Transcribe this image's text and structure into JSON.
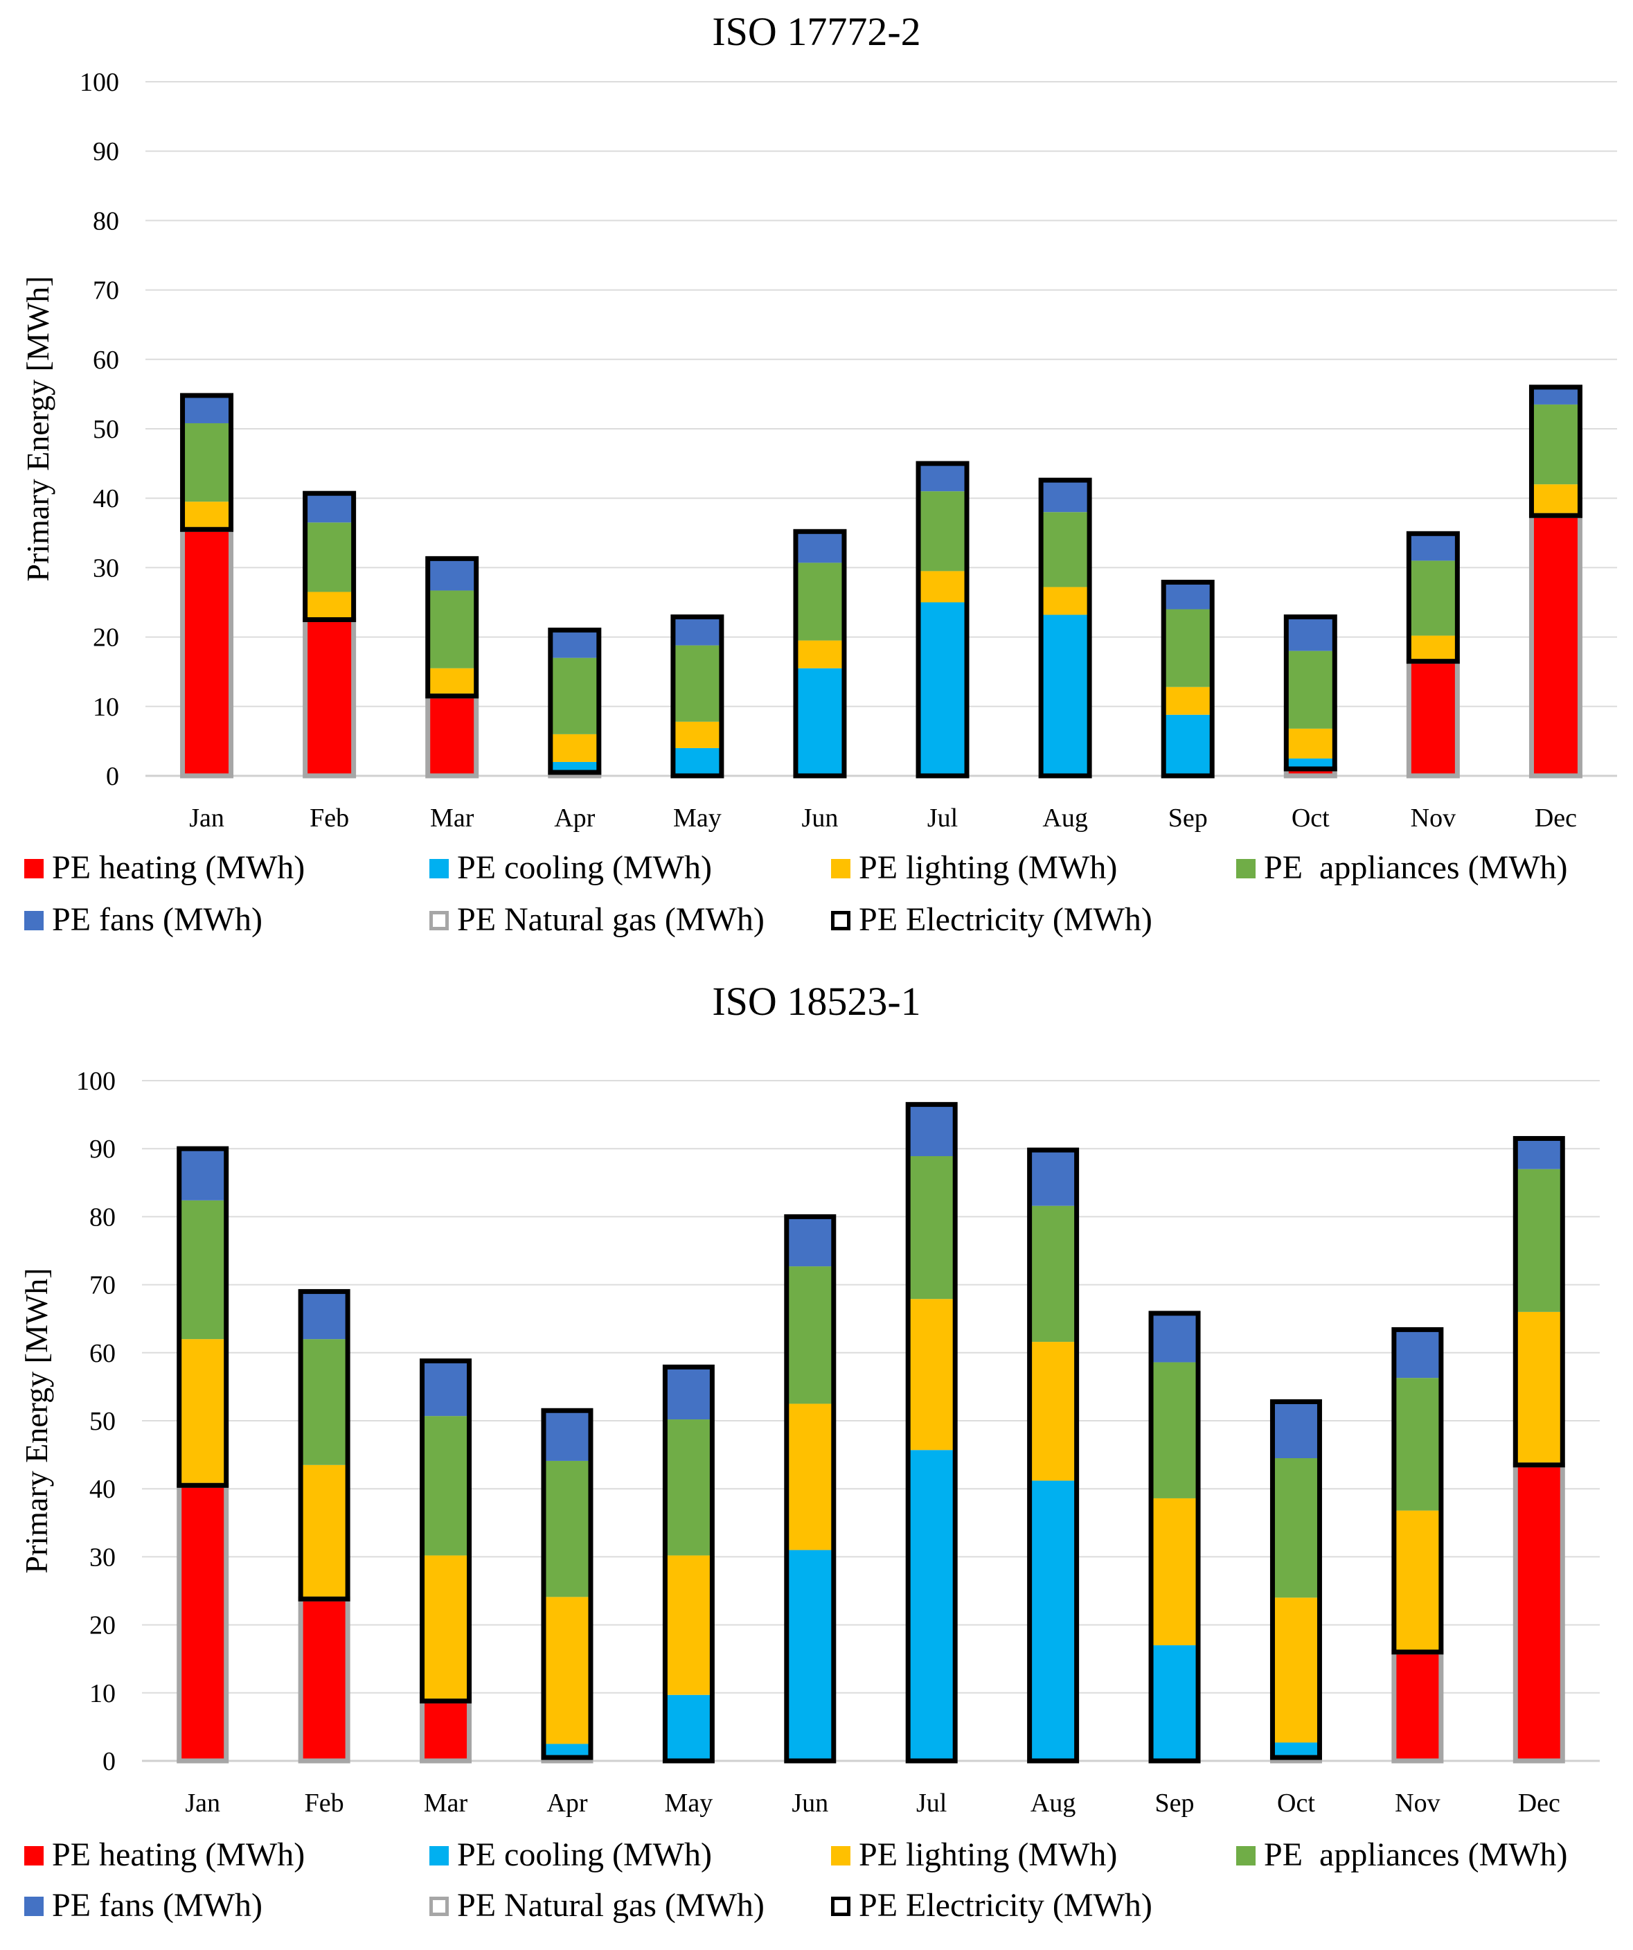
{
  "chart_data": [
    {
      "type": "bar",
      "stacked": true,
      "title": "ISO 17772-2",
      "xlabel": "",
      "ylabel": "Primary Energy [MWh]",
      "ylim": [
        0,
        100
      ],
      "yticks": [
        0,
        10,
        20,
        30,
        40,
        50,
        60,
        70,
        80,
        90,
        100
      ],
      "grid": true,
      "legend_position": "bottom",
      "categories": [
        "Jan",
        "Feb",
        "Mar",
        "Apr",
        "May",
        "Jun",
        "Jul",
        "Aug",
        "Sep",
        "Oct",
        "Nov",
        "Dec"
      ],
      "series": [
        {
          "name": "PE heating (MWh)",
          "color": "#ff0000",
          "values": [
            35.5,
            22.5,
            11.5,
            0.5,
            0,
            0,
            0,
            0,
            0,
            1,
            16.5,
            37.5
          ]
        },
        {
          "name": "PE cooling (MWh)",
          "color": "#00b0f0",
          "values": [
            0,
            0,
            0,
            1.5,
            4,
            15.5,
            25,
            23.2,
            8.8,
            1.5,
            0,
            0
          ]
        },
        {
          "name": "PE lighting (MWh)",
          "color": "#ffc000",
          "values": [
            4,
            4,
            4,
            4,
            3.8,
            4,
            4.5,
            4,
            4,
            4.3,
            3.7,
            4.5
          ]
        },
        {
          "name": "PE  appliances (MWh)",
          "color": "#70ad47",
          "values": [
            11.3,
            10,
            11.2,
            11,
            11,
            11.2,
            11.5,
            10.8,
            11.2,
            11.2,
            10.8,
            11.5
          ]
        },
        {
          "name": "PE fans (MWh)",
          "color": "#4472c4",
          "values": [
            4,
            4.2,
            4.6,
            4,
            4.1,
            4.5,
            4,
            4.6,
            3.9,
            4.9,
            3.9,
            2.5
          ]
        }
      ],
      "outline_series": [
        {
          "name": "PE Natural gas (MWh)",
          "style": "gray-outline",
          "values": [
            35.5,
            22.5,
            11.5,
            0.5,
            0,
            0,
            0,
            0,
            0,
            1,
            16.5,
            37.5
          ]
        },
        {
          "name": "PE Electricity (MWh)",
          "style": "black-outline",
          "values": [
            19.3,
            18.2,
            19.8,
            20.5,
            22.9,
            35.2,
            45,
            42.6,
            27.9,
            21.9,
            18.4,
            18.5
          ]
        }
      ]
    },
    {
      "type": "bar",
      "stacked": true,
      "title": "ISO 18523-1",
      "xlabel": "",
      "ylabel": "Primary Energy [MWh]",
      "ylim": [
        0,
        100
      ],
      "yticks": [
        0,
        10,
        20,
        30,
        40,
        50,
        60,
        70,
        80,
        90,
        100
      ],
      "grid": true,
      "legend_position": "bottom",
      "categories": [
        "Jan",
        "Feb",
        "Mar",
        "Apr",
        "May",
        "Jun",
        "Jul",
        "Aug",
        "Sep",
        "Oct",
        "Nov",
        "Dec"
      ],
      "series": [
        {
          "name": "PE heating (MWh)",
          "color": "#ff0000",
          "values": [
            40.5,
            23.8,
            8.8,
            0.5,
            0,
            0,
            0,
            0,
            0,
            0.5,
            16,
            43.5
          ]
        },
        {
          "name": "PE cooling (MWh)",
          "color": "#00b0f0",
          "values": [
            0,
            0,
            0,
            2,
            9.7,
            31,
            45.7,
            41.2,
            17,
            2.2,
            0,
            0
          ]
        },
        {
          "name": "PE lighting (MWh)",
          "color": "#ffc000",
          "values": [
            21.5,
            19.7,
            21.4,
            21.6,
            20.5,
            21.5,
            22.2,
            20.4,
            21.6,
            21.3,
            20.8,
            22.5
          ]
        },
        {
          "name": "PE  appliances (MWh)",
          "color": "#70ad47",
          "values": [
            20.4,
            18.5,
            20.5,
            20,
            20,
            20.2,
            21,
            20,
            20,
            20.5,
            19.5,
            21
          ]
        },
        {
          "name": "PE fans (MWh)",
          "color": "#4472c4",
          "values": [
            7.6,
            7,
            8.1,
            7.4,
            7.7,
            7.3,
            7.6,
            8.2,
            7.2,
            8.3,
            7.1,
            4.5
          ]
        }
      ],
      "outline_series": [
        {
          "name": "PE Natural gas (MWh)",
          "style": "gray-outline",
          "values": [
            40.5,
            23.8,
            8.8,
            0.5,
            0,
            0,
            0,
            0,
            0,
            0.5,
            16,
            43.5
          ]
        },
        {
          "name": "PE Electricity (MWh)",
          "style": "black-outline",
          "values": [
            49.5,
            45.2,
            50,
            51,
            57.9,
            80,
            96.5,
            89.8,
            65.8,
            52.3,
            47.4,
            48
          ]
        }
      ]
    }
  ]
}
